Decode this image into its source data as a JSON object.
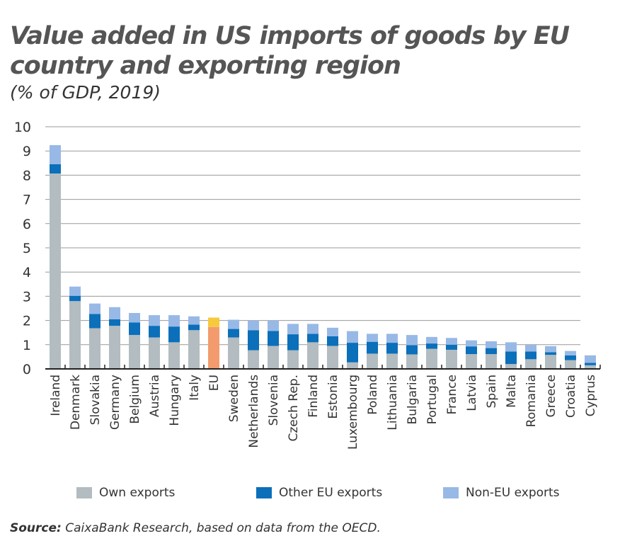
{
  "title": "Value added in US imports of goods by EU country and exporting region",
  "subtitle": "(% of GDP, 2019)",
  "source_label": "Source:",
  "source_text": " CaixaBank Research, based on data from the OECD.",
  "colors": {
    "own": "#b3bcc0",
    "other_eu": "#0b6fba",
    "non_eu": "#98b9e6",
    "eu_own": "#f39b6d",
    "eu_non_eu": "#f7c93c",
    "grid": "#999999"
  },
  "chart_data": {
    "type": "bar",
    "stacked": true,
    "ylim": [
      0,
      10
    ],
    "yticks": [
      0,
      1,
      2,
      3,
      4,
      5,
      6,
      7,
      8,
      9,
      10
    ],
    "grid": true,
    "legend_position": "bottom",
    "categories": [
      "Ireland",
      "Denmark",
      "Slovakia",
      "Germany",
      "Belgium",
      "Austria",
      "Hungary",
      "Italy",
      "EU",
      "Sweden",
      "Netherlands",
      "Slovenia",
      "Czech Rep.",
      "Finland",
      "Estonia",
      "Luxembourg",
      "Poland",
      "Lithuania",
      "Bulgaria",
      "Portugal",
      "France",
      "Latvia",
      "Spain",
      "Malta",
      "Romania",
      "Greece",
      "Croatia",
      "Cyprus"
    ],
    "series": [
      {
        "name": "Own exports",
        "values": [
          8.07,
          2.8,
          1.68,
          1.78,
          1.4,
          1.3,
          1.1,
          1.6,
          1.73,
          1.3,
          0.77,
          0.95,
          0.77,
          1.1,
          0.95,
          0.27,
          0.63,
          0.63,
          0.6,
          0.83,
          0.79,
          0.61,
          0.61,
          0.2,
          0.4,
          0.58,
          0.36,
          0.15
        ]
      },
      {
        "name": "Other EU exports",
        "values": [
          0.38,
          0.22,
          0.59,
          0.27,
          0.52,
          0.48,
          0.65,
          0.23,
          0,
          0.35,
          0.83,
          0.62,
          0.66,
          0.35,
          0.4,
          0.81,
          0.49,
          0.45,
          0.38,
          0.22,
          0.21,
          0.32,
          0.25,
          0.52,
          0.32,
          0.11,
          0.2,
          0.1
        ]
      },
      {
        "name": "Non-EU exports",
        "values": [
          0.79,
          0.38,
          0.43,
          0.5,
          0.39,
          0.44,
          0.47,
          0.34,
          0.39,
          0.38,
          0.4,
          0.43,
          0.43,
          0.41,
          0.35,
          0.48,
          0.33,
          0.37,
          0.42,
          0.27,
          0.28,
          0.25,
          0.28,
          0.38,
          0.27,
          0.25,
          0.18,
          0.31
        ]
      }
    ]
  }
}
